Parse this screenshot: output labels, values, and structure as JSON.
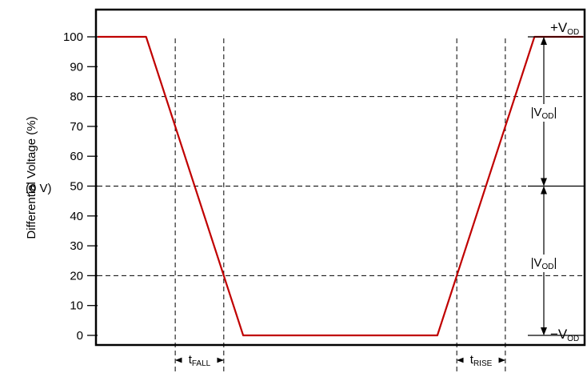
{
  "chart_data": {
    "type": "line",
    "title": "",
    "ylabel": "Differential Voltage (%)",
    "xlabel": "",
    "ylim": [
      0,
      100
    ],
    "y_ticks": [
      0,
      10,
      20,
      30,
      40,
      50,
      60,
      70,
      80,
      90,
      100
    ],
    "y_tick_labels": [
      "0",
      "10",
      "20",
      "30",
      "40",
      "50",
      "60",
      "70",
      "80",
      "90",
      "100"
    ],
    "mid_level_note": "(0 V)",
    "series": [
      {
        "color": "#c00000",
        "points": [
          {
            "x": 0.0,
            "y": 100
          },
          {
            "x": 0.1,
            "y": 100
          },
          {
            "x": 0.3,
            "y": 0
          },
          {
            "x": 0.7,
            "y": 0
          },
          {
            "x": 0.9,
            "y": 100
          },
          {
            "x": 1.0,
            "y": 100
          }
        ]
      }
    ],
    "dashed_levels": [
      20,
      50,
      80
    ],
    "dashed_time_markers": [
      0.16,
      0.26,
      0.74,
      0.84
    ],
    "annotations": {
      "plus_vod": {
        "prefix": "+V",
        "sub": "OD"
      },
      "minus_vod": {
        "prefix": "−V",
        "sub": "OD"
      },
      "vod_upper": {
        "prefix": "|V",
        "sub": "OD",
        "suffix": "|"
      },
      "vod_lower": {
        "prefix": "|V",
        "sub": "OD",
        "suffix": "|"
      },
      "t_fall": {
        "prefix": "t",
        "sub": "FALL"
      },
      "t_rise": {
        "prefix": "t",
        "sub": "RISE"
      }
    },
    "grid": false,
    "legend": "none",
    "colors": {
      "waveform": "#c00000",
      "axes": "#000000",
      "guides": "#000000"
    }
  }
}
